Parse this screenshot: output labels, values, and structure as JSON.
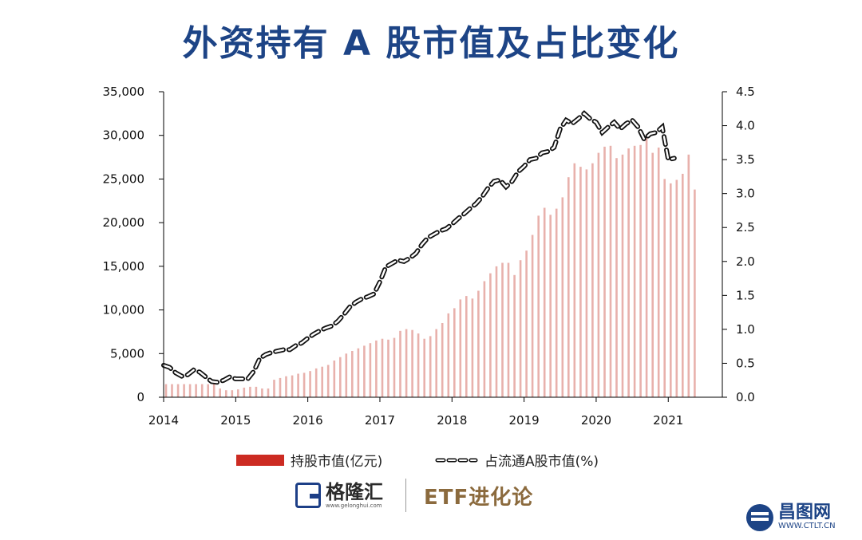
{
  "title": "外资持有 A 股市值及占比变化",
  "chart_data": {
    "type": "bar",
    "xlabel": "",
    "x_tick_labels": [
      "2014",
      "2015",
      "2016",
      "2017",
      "2018",
      "2019",
      "2020",
      "2021"
    ],
    "x_range": [
      2014,
      2021.75
    ],
    "y_left": {
      "label": "",
      "range": [
        0,
        35000
      ],
      "tick_labels": [
        "0",
        "5,000",
        "10,000",
        "15,000",
        "20,000",
        "25,000",
        "30,000",
        "35,000"
      ]
    },
    "y_right": {
      "label": "",
      "range": [
        0,
        4.5
      ],
      "tick_labels": [
        "0.0",
        "0.5",
        "1.0",
        "1.5",
        "2.0",
        "2.5",
        "3.0",
        "3.5",
        "4.0",
        "4.5"
      ]
    },
    "grid": false,
    "legend_position": "bottom",
    "series": [
      {
        "name": "持股市值(亿元)",
        "kind": "bar",
        "axis": "left",
        "color": "#cc2b22",
        "x_start": 2014.0,
        "x_step": 0.083333,
        "values": [
          1500,
          1500,
          1500,
          1500,
          1500,
          1500,
          1500,
          1500,
          1600,
          1000,
          800,
          800,
          900,
          1100,
          1200,
          1200,
          1000,
          1000,
          2000,
          2200,
          2400,
          2500,
          2700,
          2800,
          3000,
          3300,
          3500,
          3700,
          4200,
          4600,
          5000,
          5300,
          5600,
          5900,
          6200,
          6500,
          6700,
          6600,
          6800,
          7600,
          7800,
          7700,
          7300,
          6700,
          7000,
          7800,
          8500,
          9600,
          10200,
          11200,
          11600,
          11300,
          12200,
          13300,
          14200,
          15000,
          15400,
          15400,
          14000,
          15700,
          16800,
          18600,
          20800,
          21700,
          20900,
          21600,
          22900,
          25200,
          26800,
          26400,
          26100,
          26800,
          28000,
          28700,
          28800,
          27400,
          27800,
          28500,
          28800,
          28900,
          30100,
          28000,
          28600,
          25000,
          24500,
          24900,
          25600,
          27800,
          23800
        ],
        "note": "monthly values estimated from bar heights"
      },
      {
        "name": "占流通A股市值(%)",
        "kind": "line",
        "axis": "right",
        "color": "#111111",
        "style": "dashed",
        "x_start": 2014.0,
        "x_step": 0.083333,
        "values": [
          0.47,
          0.44,
          0.36,
          0.31,
          0.33,
          0.4,
          0.37,
          0.3,
          0.23,
          0.22,
          0.25,
          0.3,
          0.27,
          0.27,
          0.27,
          0.38,
          0.57,
          0.63,
          0.66,
          0.68,
          0.7,
          0.7,
          0.76,
          0.8,
          0.87,
          0.93,
          0.98,
          1.02,
          1.05,
          1.12,
          1.22,
          1.33,
          1.4,
          1.45,
          1.48,
          1.52,
          1.7,
          1.92,
          1.97,
          2.02,
          2.0,
          2.05,
          2.12,
          2.25,
          2.35,
          2.4,
          2.45,
          2.48,
          2.55,
          2.63,
          2.7,
          2.78,
          2.85,
          2.95,
          3.08,
          3.18,
          3.2,
          3.1,
          3.18,
          3.32,
          3.4,
          3.5,
          3.52,
          3.6,
          3.62,
          3.68,
          3.95,
          4.08,
          4.03,
          4.1,
          4.18,
          4.1,
          4.05,
          3.9,
          3.98,
          4.05,
          3.95,
          4.03,
          4.08,
          3.98,
          3.8,
          3.88,
          3.9,
          3.98,
          3.5,
          3.52
        ],
        "note": "monthly values estimated"
      }
    ]
  },
  "legend": {
    "bar_label": "持股市值(亿元)",
    "line_label": "占流通A股市值(%)"
  },
  "branding": {
    "logo_text": "格隆汇",
    "logo_url": "www.gelonghui.com",
    "partner": "ETF进化论",
    "watermark_text": "昌图网",
    "watermark_url": "WWW.CTLT.CN"
  }
}
